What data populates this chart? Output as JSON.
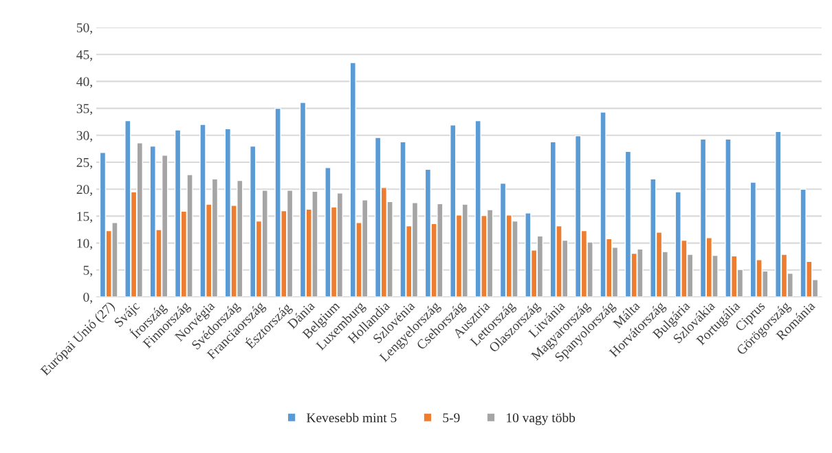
{
  "chart_data": {
    "type": "bar",
    "categories": [
      "Európai Unió (27)",
      "Svájc",
      "Írország",
      "Finnország",
      "Norvégia",
      "Svédország",
      "Franciaország",
      "Észtország",
      "Dánia",
      "Belgium",
      "Luxemburg",
      "Hollandia",
      "Szlovénia",
      "Lengyelország",
      "Csehország",
      "Ausztria",
      "Lettország",
      "Olaszország",
      "Litvánia",
      "Magyarország",
      "Spanyolország",
      "Málta",
      "Horvátország",
      "Bulgária",
      "Szlovákia",
      "Portugália",
      "Ciprus",
      "Görögország",
      "Románia"
    ],
    "series": [
      {
        "name": "Kevesebb mint 5",
        "color": "#5b9bd5",
        "values": [
          26.8,
          32.7,
          28.0,
          31.0,
          32.0,
          31.2,
          28.0,
          35.0,
          36.1,
          24.0,
          43.5,
          29.6,
          28.8,
          23.7,
          31.9,
          32.7,
          21.1,
          15.6,
          28.8,
          29.9,
          34.3,
          27.0,
          21.9,
          19.5,
          29.3,
          29.3,
          21.3,
          30.7,
          20.0
        ]
      },
      {
        "name": "5-9",
        "color": "#ed7d31",
        "values": [
          12.3,
          19.5,
          12.5,
          15.9,
          17.2,
          17.0,
          14.1,
          16.0,
          16.3,
          16.7,
          13.8,
          20.3,
          13.2,
          13.6,
          15.2,
          15.1,
          15.2,
          8.7,
          13.2,
          12.3,
          10.8,
          8.1,
          12.0,
          10.5,
          11.0,
          7.6,
          6.9,
          7.9,
          6.6
        ]
      },
      {
        "name": "10 vagy több",
        "color": "#a5a5a5",
        "values": [
          13.8,
          28.6,
          26.3,
          22.7,
          21.9,
          21.6,
          19.8,
          19.8,
          19.6,
          19.3,
          18.0,
          17.7,
          17.5,
          17.3,
          17.2,
          16.2,
          14.1,
          11.3,
          10.5,
          10.2,
          9.2,
          8.9,
          8.4,
          7.9,
          7.7,
          5.1,
          4.8,
          4.4,
          3.2
        ]
      }
    ],
    "ylim": [
      0,
      50
    ],
    "yticks": [
      {
        "value": 0,
        "label": "0,"
      },
      {
        "value": 5,
        "label": "5,"
      },
      {
        "value": 10,
        "label": "10,"
      },
      {
        "value": 15,
        "label": "15,"
      },
      {
        "value": 20,
        "label": "20,"
      },
      {
        "value": 25,
        "label": "25,"
      },
      {
        "value": 30,
        "label": "30,"
      },
      {
        "value": 35,
        "label": "35,"
      },
      {
        "value": 40,
        "label": "40,"
      },
      {
        "value": 45,
        "label": "45,"
      },
      {
        "value": 50,
        "label": "50,"
      }
    ],
    "grid": "y",
    "legend": "bottom"
  }
}
